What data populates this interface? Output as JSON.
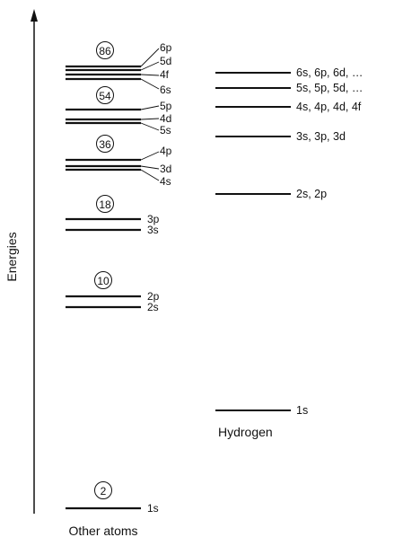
{
  "axis": {
    "label": "Energies"
  },
  "other_atoms": {
    "caption": "Other atoms",
    "groups": [
      {
        "closed_shell_total": "86",
        "levels": [
          {
            "label": "6p"
          },
          {
            "label": "5d"
          },
          {
            "label": "4f"
          },
          {
            "label": "6s"
          }
        ]
      },
      {
        "closed_shell_total": "54",
        "levels": [
          {
            "label": "5p"
          },
          {
            "label": "4d"
          },
          {
            "label": "5s"
          }
        ]
      },
      {
        "closed_shell_total": "36",
        "levels": [
          {
            "label": "4p"
          },
          {
            "label": "3d"
          },
          {
            "label": "4s"
          }
        ]
      },
      {
        "closed_shell_total": "18",
        "levels": [
          {
            "label": "3p"
          },
          {
            "label": "3s"
          }
        ]
      },
      {
        "closed_shell_total": "10",
        "levels": [
          {
            "label": "2p"
          },
          {
            "label": "2s"
          }
        ]
      },
      {
        "closed_shell_total": "2",
        "levels": [
          {
            "label": "1s"
          }
        ]
      }
    ]
  },
  "hydrogen": {
    "caption": "Hydrogen",
    "levels": [
      {
        "label": "6s, 6p, 6d, …"
      },
      {
        "label": "5s, 5p, 5d, …"
      },
      {
        "label": "4s, 4p, 4d, 4f"
      },
      {
        "label": "3s, 3p, 3d"
      },
      {
        "label": "2s, 2p"
      },
      {
        "label": "1s"
      }
    ]
  }
}
